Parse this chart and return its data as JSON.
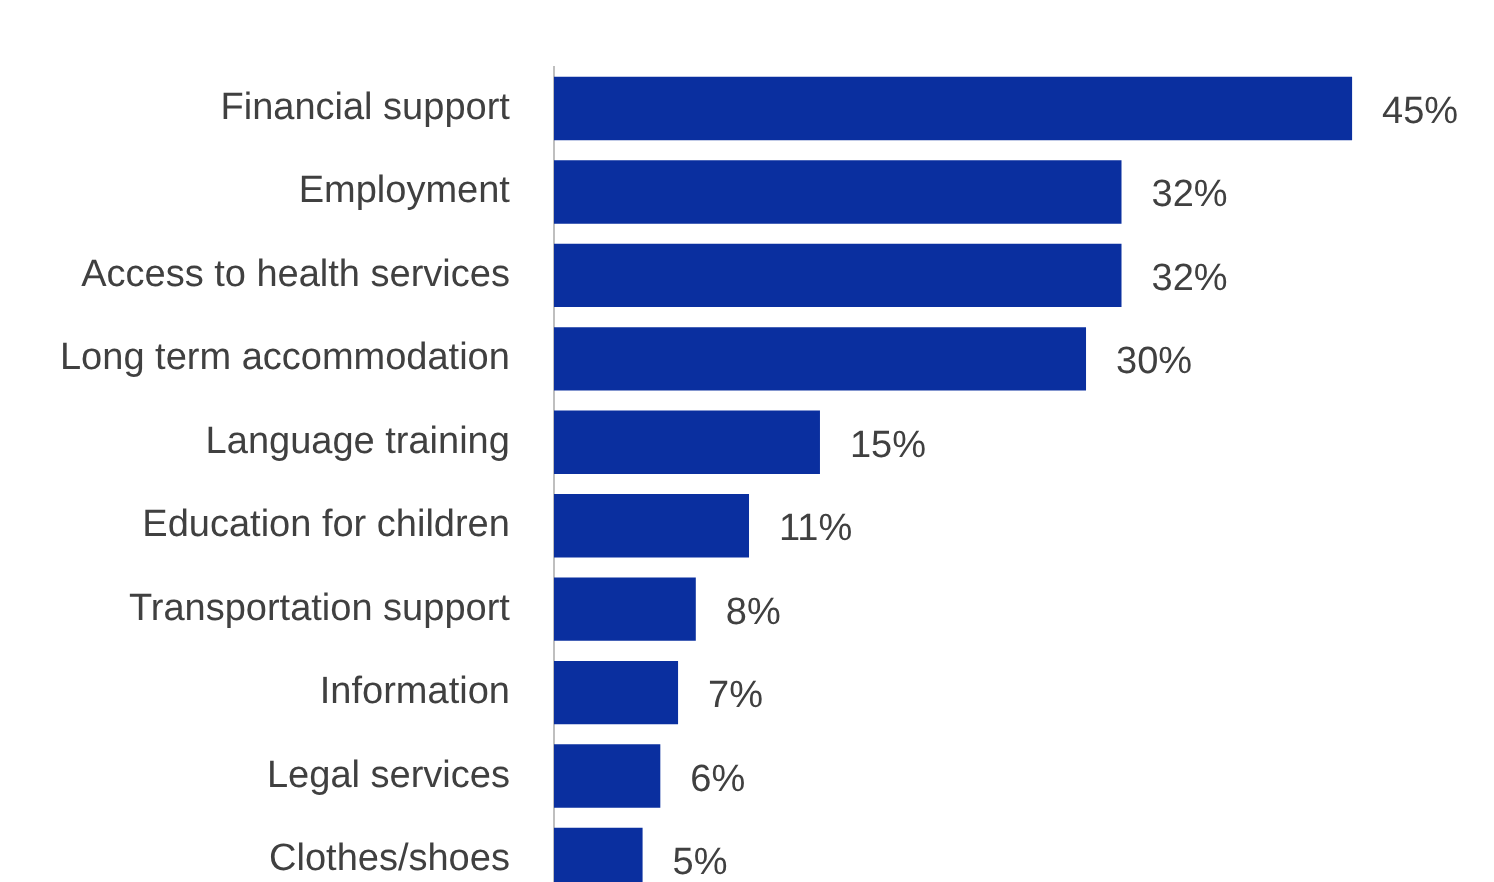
{
  "chart_data": {
    "type": "bar",
    "orientation": "horizontal",
    "categories": [
      "Financial support",
      "Employment",
      "Access to health services",
      "Long term accommodation",
      "Language training",
      "Education for children",
      "Transportation support",
      "Information",
      "Legal services",
      "Clothes/shoes"
    ],
    "values": [
      45,
      32,
      32,
      30,
      15,
      11,
      8,
      7,
      6,
      5
    ],
    "value_labels": [
      "45%",
      "32%",
      "32%",
      "30%",
      "15%",
      "11%",
      "8%",
      "7%",
      "6%",
      "5%"
    ],
    "color": "#0a2f9f",
    "xlim": [
      0,
      53
    ],
    "tick_labels": "y"
  }
}
